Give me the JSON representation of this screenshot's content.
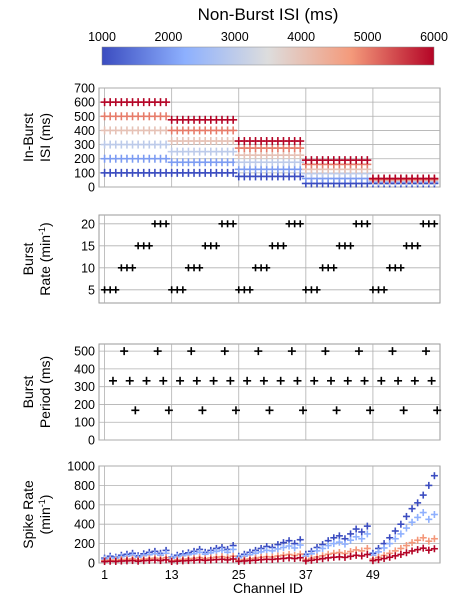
{
  "colorbar": {
    "title": "Non-Burst ISI (ms)",
    "ticks": [
      "1000",
      "2000",
      "3000",
      "4000",
      "5000",
      "6000"
    ],
    "range": [
      1000,
      6000
    ],
    "colors": [
      "#3b4cc0",
      "#dddddd",
      "#b40426"
    ]
  },
  "panels": [
    {
      "ylabel1": "In-Burst",
      "ylabel2": "ISI (ms)",
      "yticks": [
        "0",
        "100",
        "200",
        "300",
        "400",
        "500",
        "600",
        "700"
      ],
      "ylim": [
        0,
        700
      ]
    },
    {
      "ylabel1": "Burst",
      "ylabel2": "Rate (min",
      "ylabel_sup": "-1",
      "ylabel_end": ")",
      "yticks": [
        "5",
        "10",
        "15",
        "20"
      ],
      "ylim": [
        2,
        22
      ]
    },
    {
      "ylabel1": "Burst",
      "ylabel2": "Period (ms)",
      "yticks": [
        "0",
        "100",
        "200",
        "300",
        "400",
        "500"
      ],
      "ylim": [
        0,
        540
      ]
    },
    {
      "ylabel1": "Spike Rate",
      "ylabel2": "(min",
      "ylabel_sup": "-1",
      "ylabel_end": ")",
      "yticks": [
        "0",
        "200",
        "400",
        "600",
        "800",
        "1000"
      ],
      "ylim": [
        0,
        1000
      ]
    }
  ],
  "xaxis": {
    "label": "Channel ID",
    "ticks": [
      "1",
      "13",
      "25",
      "37",
      "49"
    ],
    "tick_values": [
      1,
      13,
      25,
      37,
      49
    ],
    "xlim": [
      0,
      61
    ]
  },
  "chart_data": [
    {
      "type": "scatter",
      "title": "",
      "ylabel": "In-Burst ISI (ms)",
      "xlabel": "Channel ID",
      "x": "channels 1-60, 12 per group",
      "series_rule": "In-burst ISI per group (groups 1-5): 100-600, 100-475, 75-325, 25-190, 25-60; each group spans non-burst ISI 1000-6000",
      "groups": [
        {
          "channels": [
            1,
            12
          ],
          "isi_values": [
            100,
            200,
            300,
            400,
            500,
            600
          ]
        },
        {
          "channels": [
            13,
            24
          ],
          "isi_values": [
            100,
            175,
            250,
            325,
            400,
            475
          ]
        },
        {
          "channels": [
            25,
            36
          ],
          "isi_values": [
            75,
            125,
            175,
            225,
            275,
            325
          ]
        },
        {
          "channels": [
            37,
            48
          ],
          "isi_values": [
            25,
            60,
            95,
            125,
            160,
            190
          ]
        },
        {
          "channels": [
            49,
            60
          ],
          "isi_values": [
            25,
            35,
            42,
            48,
            54,
            60
          ]
        }
      ],
      "non_burst_isi_levels": [
        1000,
        2000,
        3000,
        4000,
        5000,
        6000
      ]
    },
    {
      "type": "scatter",
      "ylabel": "Burst Rate (min-1)",
      "xlabel": "Channel ID",
      "pattern": "within each group of 12 channels: channels 1-3 → 5, 4-6 → 10, 7-9 → 15, 10-12 → 20",
      "rates": [
        5,
        10,
        15,
        20
      ],
      "groups": 5
    },
    {
      "type": "scatter",
      "ylabel": "Burst Period (ms)",
      "xlabel": "Channel ID",
      "pattern": "channel cycle of 3: 500, 333, 167 ms",
      "periods": [
        500,
        333,
        167
      ],
      "channels": [
        1,
        60
      ]
    },
    {
      "type": "scatter",
      "ylabel": "Spike Rate (min-1)",
      "xlabel": "Channel ID",
      "note": "multiple series colored by non-burst ISI; rises with channel ID",
      "series": [
        {
          "color": "#3b4cc0",
          "values": [
            50,
            70,
            60,
            80,
            90,
            100,
            75,
            95,
            110,
            120,
            100,
            130,
            60,
            80,
            95,
            105,
            120,
            140,
            110,
            130,
            150,
            160,
            140,
            180,
            70,
            90,
            110,
            130,
            150,
            170,
            160,
            190,
            210,
            230,
            200,
            240,
            90,
            120,
            160,
            190,
            230,
            260,
            280,
            250,
            300,
            350,
            320,
            380,
            100,
            150,
            200,
            260,
            330,
            400,
            480,
            560,
            620,
            700,
            800,
            900
          ]
        },
        {
          "color": "#8fb0fe",
          "values": [
            40,
            55,
            50,
            65,
            70,
            80,
            60,
            75,
            85,
            95,
            80,
            100,
            50,
            65,
            75,
            85,
            95,
            110,
            90,
            105,
            120,
            130,
            110,
            140,
            55,
            70,
            85,
            100,
            115,
            130,
            125,
            145,
            160,
            175,
            155,
            185,
            70,
            95,
            125,
            150,
            180,
            200,
            215,
            195,
            235,
            270,
            250,
            300,
            80,
            115,
            155,
            200,
            250,
            300,
            360,
            420,
            470,
            520,
            450,
            500
          ]
        },
        {
          "color": "#f4987a",
          "values": [
            25,
            30,
            28,
            35,
            38,
            42,
            32,
            40,
            45,
            50,
            42,
            55,
            25,
            32,
            38,
            42,
            48,
            55,
            45,
            52,
            60,
            65,
            55,
            70,
            28,
            35,
            42,
            50,
            58,
            65,
            62,
            72,
            80,
            88,
            78,
            92,
            35,
            48,
            62,
            75,
            90,
            100,
            108,
            98,
            118,
            135,
            125,
            150,
            40,
            58,
            78,
            100,
            125,
            150,
            180,
            210,
            235,
            260,
            225,
            250
          ]
        },
        {
          "color": "#b40426",
          "values": [
            15,
            18,
            16,
            20,
            22,
            25,
            18,
            24,
            27,
            30,
            25,
            32,
            15,
            19,
            22,
            25,
            28,
            32,
            27,
            31,
            35,
            38,
            32,
            41,
            17,
            21,
            25,
            29,
            34,
            38,
            37,
            42,
            47,
            52,
            46,
            54,
            21,
            28,
            36,
            44,
            53,
            59,
            63,
            58,
            69,
            79,
            73,
            88,
            24,
            34,
            46,
            59,
            74,
            88,
            106,
            124,
            138,
            153,
            132,
            147
          ]
        }
      ]
    }
  ]
}
